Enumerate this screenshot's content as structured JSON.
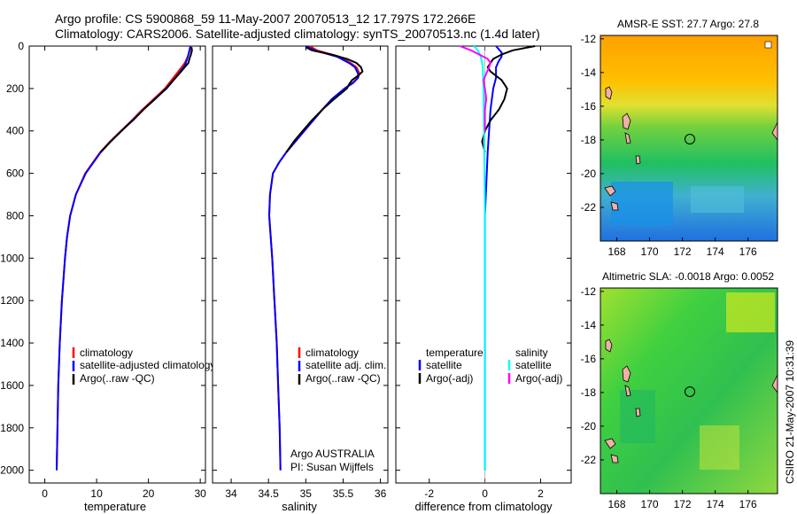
{
  "header": {
    "line1": "Argo profile: CS 5900868_59 11-May-2007 20070513_12 17.797S 172.266E",
    "line2": "Climatology: CARS2006. Satellite-adjusted climatology: synTS_20070513.nc (1.4d later)"
  },
  "side_stamp": "CSIRO 21-May-2007 10:31:39",
  "chart_data": [
    {
      "type": "line",
      "xlabel": "temperature",
      "ylabel": "",
      "xlim": [
        -3,
        31
      ],
      "ylim": [
        2060,
        0
      ],
      "xticks": [
        "0",
        "10",
        "20",
        "30"
      ],
      "xtick_values": [
        0,
        10,
        20,
        30
      ],
      "yticks": [
        "0",
        "200",
        "400",
        "600",
        "800",
        "1000",
        "1200",
        "1400",
        "1600",
        "1800",
        "2000"
      ],
      "ytick_values": [
        0,
        200,
        400,
        600,
        800,
        1000,
        1200,
        1400,
        1600,
        1800,
        2000
      ],
      "legend": [
        "climatology",
        "satellite-adjusted climatology",
        "Argo(..raw -QC)"
      ],
      "series": [
        {
          "name": "climatology",
          "color": "#ff0000",
          "depth": [
            0,
            20,
            50,
            80,
            100,
            150,
            200,
            250,
            300,
            350,
            400,
            450,
            500,
            600,
            700,
            800,
            900,
            1000,
            1200,
            1400,
            1600,
            1800,
            2000
          ],
          "values": [
            28.2,
            28.0,
            27.6,
            27.0,
            26.4,
            24.8,
            23.2,
            21.0,
            18.8,
            16.8,
            14.7,
            12.6,
            10.7,
            7.8,
            6.0,
            4.9,
            4.3,
            3.9,
            3.3,
            2.9,
            2.6,
            2.45,
            2.3
          ]
        },
        {
          "name": "satellite-adjusted climatology",
          "color": "#0000ff",
          "depth": [
            0,
            20,
            50,
            80,
            100,
            150,
            200,
            250,
            300,
            350,
            400,
            450,
            500,
            600,
            700,
            800,
            900,
            1000,
            1200,
            1400,
            1600,
            1800,
            2000
          ],
          "values": [
            28.1,
            27.9,
            27.6,
            27.2,
            26.8,
            25.2,
            23.5,
            21.2,
            19.0,
            16.9,
            14.8,
            12.7,
            10.8,
            7.9,
            6.0,
            4.9,
            4.3,
            3.9,
            3.3,
            2.9,
            2.6,
            2.45,
            2.3
          ]
        },
        {
          "name": "Argo(..raw -QC)",
          "color": "#000000",
          "depth": [
            5,
            20,
            40,
            60,
            80,
            100,
            120,
            150,
            200,
            250,
            300,
            350,
            400,
            450,
            500
          ],
          "values": [
            28.3,
            28.4,
            28.2,
            27.9,
            27.7,
            27.0,
            26.3,
            25.2,
            23.4,
            21.3,
            19.0,
            17.0,
            14.8,
            12.7,
            10.8
          ]
        }
      ]
    },
    {
      "type": "line",
      "xlabel": "salinity",
      "ylabel": "",
      "xlim": [
        33.75,
        36.1
      ],
      "ylim": [
        2060,
        0
      ],
      "xticks": [
        "34",
        "34.5",
        "35",
        "35.5",
        "36"
      ],
      "xtick_values": [
        34,
        34.5,
        35,
        35.5,
        36
      ],
      "legend": [
        "climatology",
        "satellite adj. clim.",
        "Argo(..raw -QC)"
      ],
      "annotation": [
        "Argo AUSTRALIA",
        "PI: Susan Wijffels"
      ],
      "series": [
        {
          "name": "climatology",
          "color": "#ff0000",
          "depth": [
            0,
            20,
            50,
            80,
            100,
            130,
            150,
            175,
            200,
            250,
            300,
            400,
            450,
            500,
            550,
            600,
            700,
            800,
            900,
            1000,
            1200,
            1400,
            1600,
            1800,
            2000
          ],
          "values": [
            35.05,
            35.15,
            35.45,
            35.6,
            35.68,
            35.72,
            35.7,
            35.62,
            35.52,
            35.35,
            35.22,
            34.98,
            34.86,
            34.74,
            34.64,
            34.56,
            34.52,
            34.51,
            34.53,
            34.55,
            34.58,
            34.61,
            34.63,
            34.65,
            34.66
          ]
        },
        {
          "name": "satellite adj. clim.",
          "color": "#0000ff",
          "depth": [
            0,
            20,
            50,
            80,
            100,
            130,
            150,
            175,
            200,
            250,
            300,
            400,
            450,
            500,
            550,
            600,
            700,
            800,
            900,
            1000,
            1200,
            1400,
            1600,
            1800,
            2000
          ],
          "values": [
            35.0,
            35.12,
            35.42,
            35.58,
            35.66,
            35.7,
            35.7,
            35.63,
            35.52,
            35.35,
            35.22,
            34.98,
            34.86,
            34.74,
            34.64,
            34.56,
            34.52,
            34.51,
            34.53,
            34.55,
            34.58,
            34.61,
            34.63,
            34.65,
            34.66
          ]
        },
        {
          "name": "Argo(..raw -QC)",
          "color": "#000000",
          "depth": [
            5,
            20,
            40,
            60,
            80,
            100,
            120,
            140,
            160,
            180,
            200,
            250,
            300,
            350,
            400,
            450,
            500
          ],
          "values": [
            35.0,
            35.08,
            35.35,
            35.55,
            35.68,
            35.74,
            35.76,
            35.7,
            35.62,
            35.58,
            35.55,
            35.38,
            35.22,
            35.08,
            34.96,
            34.84,
            34.74
          ]
        }
      ]
    },
    {
      "type": "line",
      "xlabel": "difference from climatology",
      "ylabel": "",
      "xlim": [
        -3.2,
        3.1
      ],
      "ylim": [
        2060,
        0
      ],
      "xticks": [
        "-2",
        "0",
        "2"
      ],
      "xtick_values": [
        -2,
        0,
        2
      ],
      "legend_left_title": "temperature",
      "legend_right_title": "salinity",
      "legend_left": [
        "satellite",
        "Argo(-adj)"
      ],
      "legend_right": [
        "satellite",
        "Argo(-adj)"
      ],
      "series": [
        {
          "name": "temperature satellite",
          "color": "#0000ff",
          "depth": [
            0,
            30,
            50,
            70,
            100,
            150,
            200,
            300,
            500,
            800,
            1200,
            1600,
            2000
          ],
          "values": [
            0.4,
            0.6,
            0.6,
            0.5,
            0.4,
            0.4,
            0.3,
            0.2,
            0.1,
            0.0,
            0.0,
            0.0,
            0.0
          ]
        },
        {
          "name": "temperature Argo(-adj)",
          "color": "#000000",
          "depth": [
            0,
            20,
            40,
            60,
            80,
            100,
            120,
            140,
            160,
            180,
            200,
            250,
            300,
            350,
            400,
            450,
            500
          ],
          "values": [
            1.8,
            1.0,
            0.6,
            0.3,
            0.2,
            0.1,
            0.2,
            0.4,
            0.6,
            0.7,
            0.8,
            0.7,
            0.5,
            0.2,
            0.0,
            -0.1,
            0.0
          ]
        },
        {
          "name": "salinity satellite",
          "color": "#00ffff",
          "depth": [
            0,
            20,
            50,
            80,
            100,
            200,
            400,
            800,
            1200,
            1600,
            2000
          ],
          "values": [
            -0.4,
            -0.25,
            -0.15,
            -0.1,
            -0.08,
            -0.05,
            -0.03,
            0.0,
            0.0,
            0.0,
            0.0
          ]
        },
        {
          "name": "salinity Argo(-adj)",
          "color": "#ff00ff",
          "depth": [
            0,
            20,
            40,
            60,
            80,
            100,
            130,
            160,
            200,
            250,
            300,
            350,
            400
          ],
          "values": [
            -0.9,
            -0.5,
            -0.2,
            0.1,
            0.2,
            0.15,
            0.05,
            -0.05,
            0.0,
            0.05,
            0.0,
            0.0,
            0.0
          ]
        }
      ]
    },
    {
      "type": "heatmap",
      "title": "AMSR-E SST: 27.7 Argo: 27.8",
      "xlim": [
        167,
        177.8
      ],
      "ylim": [
        -24,
        -11.8
      ],
      "xticks": [
        "168",
        "170",
        "172",
        "174",
        "176"
      ],
      "xtick_values": [
        168,
        170,
        172,
        174,
        176
      ],
      "yticks": [
        "-12",
        "-14",
        "-16",
        "-18",
        "-20",
        "-22"
      ],
      "ytick_values": [
        -12,
        -14,
        -16,
        -18,
        -20,
        -22
      ],
      "marker": {
        "lon": 172.27,
        "lat": -17.8
      }
    },
    {
      "type": "heatmap",
      "title": "Altimetric SLA: -0.0018 Argo: 0.0052",
      "xlim": [
        167,
        177.8
      ],
      "ylim": [
        -24,
        -11.8
      ],
      "xticks": [
        "168",
        "170",
        "172",
        "174",
        "176"
      ],
      "xtick_values": [
        168,
        170,
        172,
        174,
        176
      ],
      "yticks": [
        "-12",
        "-14",
        "-16",
        "-18",
        "-20",
        "-22"
      ],
      "ytick_values": [
        -12,
        -14,
        -16,
        -18,
        -20,
        -22
      ],
      "marker": {
        "lon": 172.27,
        "lat": -17.8
      }
    }
  ]
}
